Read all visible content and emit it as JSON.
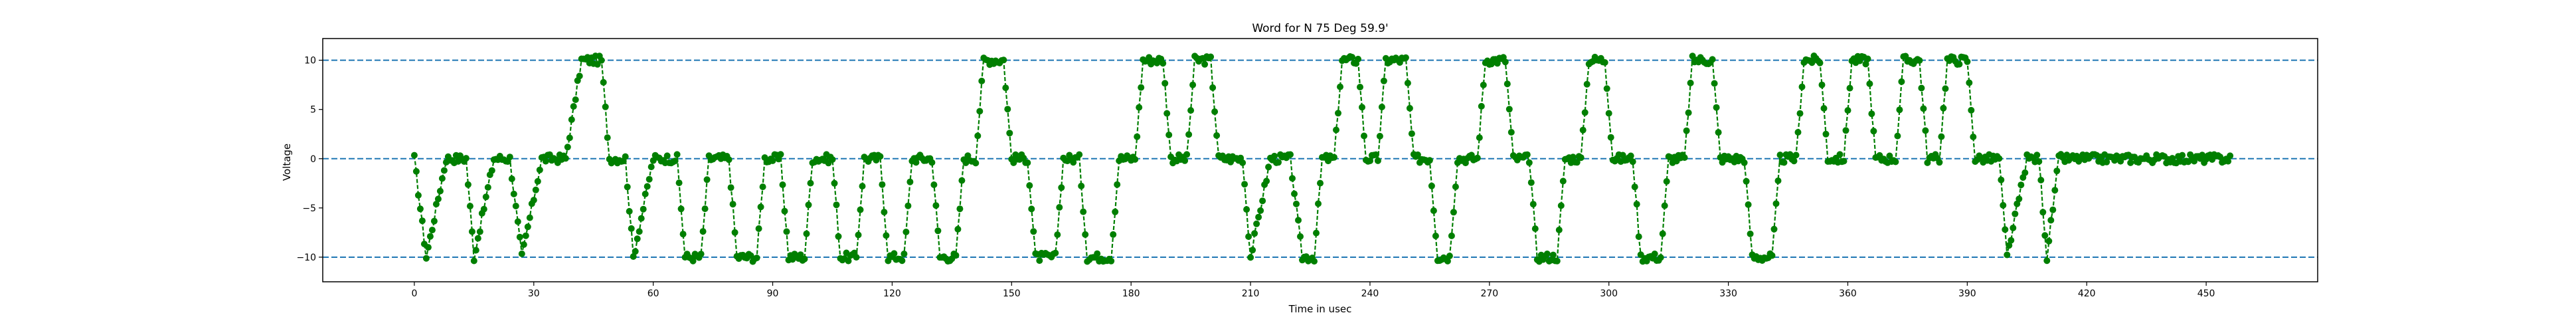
{
  "chart_data": {
    "type": "line",
    "title": "Word for N 75 Deg 59.9'",
    "xlabel": "Time in usec",
    "ylabel": "Voltage",
    "xlim": [
      -23,
      478
    ],
    "ylim": [
      -12.5,
      12.2
    ],
    "xticks": [
      0,
      30,
      60,
      90,
      120,
      150,
      180,
      210,
      240,
      270,
      300,
      330,
      360,
      390,
      420,
      450
    ],
    "yticks": [
      -10,
      -5,
      0,
      5,
      10
    ],
    "reference_lines": [
      10,
      0,
      -10
    ],
    "grid": false,
    "legend": "none",
    "colors": {
      "series": "#007f00",
      "reference_line": "#1f77b4",
      "axis": "#000000"
    },
    "series": [
      {
        "marker": "circle",
        "line_style": "dashed",
        "sample_step_usec": 0.5,
        "levels": [
          [
            0,
            0
          ],
          [
            3,
            -10
          ],
          [
            8,
            0
          ],
          [
            13,
            0
          ],
          [
            15,
            -10
          ],
          [
            20,
            0
          ],
          [
            24,
            0
          ],
          [
            27,
            -10
          ],
          [
            32,
            0
          ],
          [
            38,
            0
          ],
          [
            42,
            10
          ],
          [
            47,
            10
          ],
          [
            49,
            0
          ],
          [
            53,
            0
          ],
          [
            55,
            -10
          ],
          [
            60,
            0
          ],
          [
            66,
            0
          ],
          [
            68,
            -10
          ],
          [
            72,
            -10
          ],
          [
            74,
            0
          ],
          [
            79,
            0
          ],
          [
            81,
            -10
          ],
          [
            86,
            -10
          ],
          [
            88,
            0
          ],
          [
            92,
            0
          ],
          [
            94,
            -10
          ],
          [
            98,
            -10
          ],
          [
            100,
            0
          ],
          [
            105,
            0
          ],
          [
            107,
            -10
          ],
          [
            111,
            -10
          ],
          [
            113,
            0
          ],
          [
            117,
            0
          ],
          [
            119,
            -10
          ],
          [
            123,
            -10
          ],
          [
            125,
            0
          ],
          [
            130,
            0
          ],
          [
            132,
            -10
          ],
          [
            136,
            -10
          ],
          [
            138,
            0
          ],
          [
            141,
            0
          ],
          [
            143,
            10
          ],
          [
            148,
            10
          ],
          [
            150,
            0
          ],
          [
            154,
            0
          ],
          [
            156,
            -10
          ],
          [
            161,
            -10
          ],
          [
            163,
            0
          ],
          [
            167,
            0
          ],
          [
            169,
            -10
          ],
          [
            175,
            -10
          ],
          [
            177,
            0
          ],
          [
            181,
            0
          ],
          [
            183,
            10
          ],
          [
            188,
            10
          ],
          [
            190,
            0
          ],
          [
            194,
            0
          ],
          [
            196,
            10
          ],
          [
            200,
            10
          ],
          [
            202,
            0
          ],
          [
            208,
            0
          ],
          [
            210,
            -10
          ],
          [
            215,
            0
          ],
          [
            220,
            0
          ],
          [
            223,
            -10
          ],
          [
            226,
            -10
          ],
          [
            228,
            0
          ],
          [
            231,
            0
          ],
          [
            233,
            10
          ],
          [
            237,
            10
          ],
          [
            239,
            0
          ],
          [
            242,
            0
          ],
          [
            244,
            10
          ],
          [
            249,
            10
          ],
          [
            251,
            0
          ],
          [
            255,
            0
          ],
          [
            257,
            -10
          ],
          [
            260,
            -10
          ],
          [
            262,
            0
          ],
          [
            267,
            0
          ],
          [
            269,
            10
          ],
          [
            274,
            10
          ],
          [
            276,
            0
          ],
          [
            280,
            0
          ],
          [
            282,
            -10
          ],
          [
            287,
            -10
          ],
          [
            289,
            0
          ],
          [
            293,
            0
          ],
          [
            295,
            10
          ],
          [
            299,
            10
          ],
          [
            301,
            0
          ],
          [
            306,
            0
          ],
          [
            308,
            -10
          ],
          [
            313,
            -10
          ],
          [
            315,
            0
          ],
          [
            319,
            0
          ],
          [
            321,
            10
          ],
          [
            326,
            10
          ],
          [
            328,
            0
          ],
          [
            334,
            0
          ],
          [
            336,
            -10
          ],
          [
            341,
            -10
          ],
          [
            343,
            0
          ],
          [
            347,
            0
          ],
          [
            349,
            10
          ],
          [
            353,
            10
          ],
          [
            355,
            0
          ],
          [
            359,
            0
          ],
          [
            361,
            10
          ],
          [
            365,
            10
          ],
          [
            367,
            0
          ],
          [
            372,
            0
          ],
          [
            374,
            10
          ],
          [
            378,
            10
          ],
          [
            380,
            0
          ],
          [
            383,
            0
          ],
          [
            385,
            10
          ],
          [
            390,
            10
          ],
          [
            392,
            0
          ],
          [
            398,
            0
          ],
          [
            400,
            -10
          ],
          [
            405,
            0
          ],
          [
            408,
            0
          ],
          [
            410,
            -10
          ],
          [
            413,
            0
          ],
          [
            456,
            0
          ]
        ]
      }
    ]
  }
}
